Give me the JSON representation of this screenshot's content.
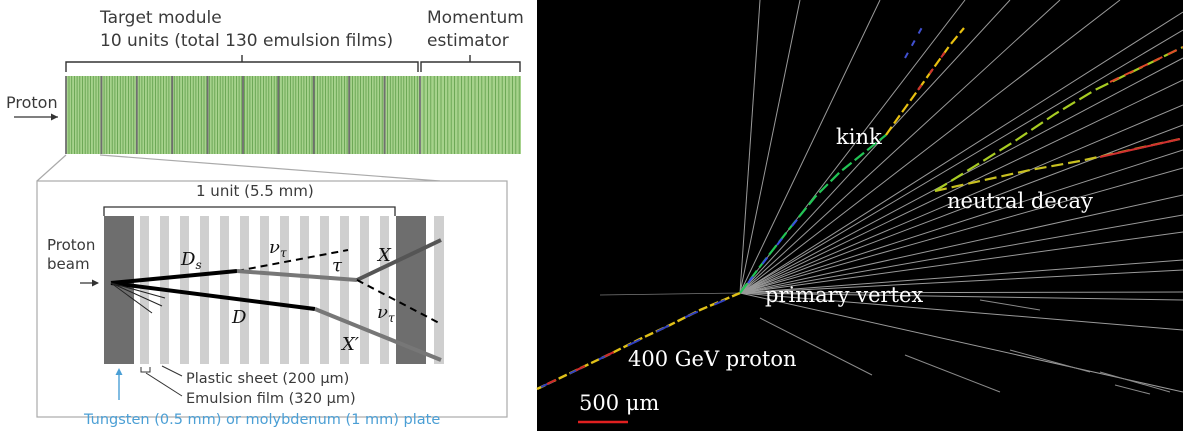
{
  "schematic": {
    "target_title": "Target module",
    "target_subtitle": "10 units (total 130 emulsion films)",
    "momentum_title": "Momentum",
    "momentum_subtitle": "estimator",
    "proton_label": "Proton",
    "unit_label": "1 unit (5.5 mm)",
    "beam_label_1": "Proton",
    "beam_label_2": "beam",
    "particles": {
      "ds": "D",
      "ds_sub": "s",
      "d": "D",
      "nu_tau_1": "ν",
      "nu_tau_1_sub": "τ",
      "tau": "τ",
      "x": "X",
      "nu_tau_2": "ν",
      "nu_tau_2_sub": "τ",
      "x_prime": "X′"
    },
    "plastic_sheet": "Plastic sheet (200 μm)",
    "emulsion_film": "Emulsion film (320 μm)",
    "plate_label": "Tungsten (0.5 mm) or molybdenum (1 mm) plate",
    "colors": {
      "film_green": "#9ccd84",
      "film_line": "#5f9e4a",
      "tungsten_gray": "#6e6e6e",
      "plate_blue": "#4b9fd5"
    }
  },
  "event_display": {
    "kink": "kink",
    "neutral_decay": "neutral decay",
    "primary_vertex": "primary vertex",
    "proton_label": "400 GeV proton",
    "scale_bar": "500 μm",
    "colors": {
      "background": "#000000",
      "scale_bar": "#e02020"
    }
  }
}
